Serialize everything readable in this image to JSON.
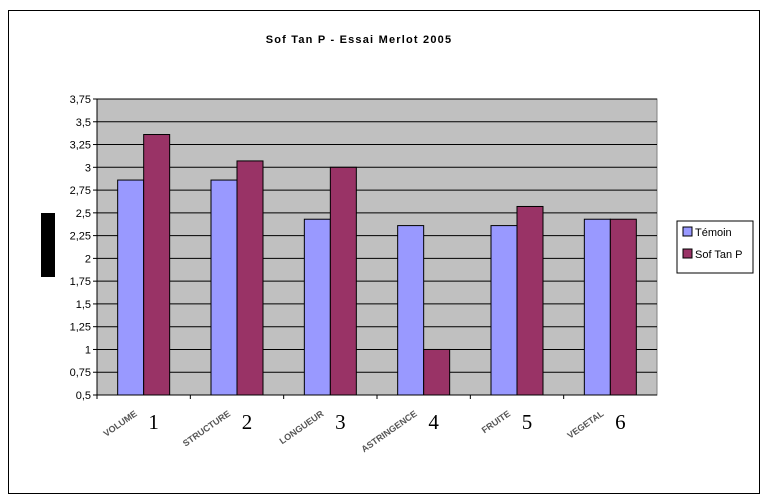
{
  "chart_data": {
    "type": "bar",
    "title": "Sof Tan P - Essai Merlot 2005",
    "categories": [
      "VOLUME",
      "STRUCTURE",
      "LONGUEUR",
      "ASTRINGENCE",
      "FRUITE",
      "VEGETAL"
    ],
    "category_numbers": [
      "1",
      "2",
      "3",
      "4",
      "5",
      "6"
    ],
    "series": [
      {
        "name": "Témoin",
        "values": [
          2.86,
          2.86,
          2.43,
          2.36,
          2.36,
          2.43
        ],
        "color": "#9999ff"
      },
      {
        "name": "Sof Tan P",
        "values": [
          3.36,
          3.07,
          3.0,
          1.0,
          2.57,
          2.43
        ],
        "color": "#993366"
      }
    ],
    "ylim": [
      0.5,
      3.75
    ],
    "yticks": [
      "0,5",
      "0,75",
      "1",
      "1,25",
      "1,5",
      "1,75",
      "2",
      "2,25",
      "2,5",
      "2,75",
      "3",
      "3,25",
      "3,5",
      "3,75"
    ],
    "plot_background": "#c0c0c0",
    "grid": true,
    "legend_position": "right"
  }
}
